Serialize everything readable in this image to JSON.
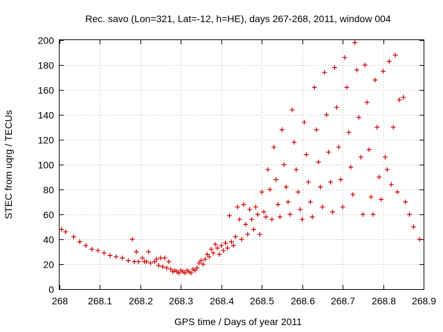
{
  "chart_data": {
    "type": "scatter",
    "title": "Rec. savo (Lon=321, Lat=-12, h=HE), days 267-268, 2011, window 004",
    "xlabel": "GPS time / Days of year 2011",
    "ylabel": "STEC from uqrg / TECUs",
    "xlim": [
      268,
      268.9
    ],
    "ylim": [
      0,
      200
    ],
    "x_ticks": [
      268,
      268.1,
      268.2,
      268.3,
      268.4,
      268.5,
      268.6,
      268.7,
      268.8,
      268.9
    ],
    "x_tick_labels": [
      "268",
      "268.1",
      "268.2",
      "268.3",
      "268.4",
      "268.5",
      "268.6",
      "268.7",
      "268.8",
      "268.9"
    ],
    "y_ticks": [
      0,
      20,
      40,
      60,
      80,
      100,
      120,
      140,
      160,
      180,
      200
    ],
    "y_tick_labels": [
      "0",
      "20",
      "40",
      "60",
      "80",
      "100",
      "120",
      "140",
      "160",
      "180",
      "200"
    ],
    "grid": true,
    "marker": "+",
    "color": "#cc0000",
    "series": [
      {
        "name": "STEC",
        "points": [
          [
            268.005,
            48
          ],
          [
            268.015,
            46
          ],
          [
            268.035,
            42
          ],
          [
            268.05,
            38
          ],
          [
            268.065,
            35
          ],
          [
            268.08,
            32
          ],
          [
            268.095,
            31
          ],
          [
            268.11,
            29
          ],
          [
            268.125,
            27
          ],
          [
            268.14,
            26
          ],
          [
            268.155,
            25
          ],
          [
            268.17,
            23
          ],
          [
            268.18,
            40
          ],
          [
            268.185,
            22
          ],
          [
            268.19,
            30
          ],
          [
            268.195,
            22
          ],
          [
            268.205,
            25
          ],
          [
            268.21,
            22
          ],
          [
            268.215,
            22
          ],
          [
            268.22,
            30
          ],
          [
            268.225,
            21
          ],
          [
            268.235,
            22
          ],
          [
            268.24,
            24
          ],
          [
            268.245,
            19
          ],
          [
            268.25,
            25
          ],
          [
            268.255,
            18
          ],
          [
            268.26,
            25
          ],
          [
            268.265,
            17
          ],
          [
            268.27,
            22
          ],
          [
            268.275,
            16
          ],
          [
            268.28,
            14
          ],
          [
            268.285,
            15
          ],
          [
            268.29,
            14
          ],
          [
            268.295,
            13
          ],
          [
            268.3,
            15
          ],
          [
            268.305,
            14
          ],
          [
            268.31,
            13
          ],
          [
            268.315,
            15
          ],
          [
            268.32,
            14
          ],
          [
            268.325,
            13
          ],
          [
            268.33,
            16
          ],
          [
            268.335,
            15
          ],
          [
            268.34,
            17
          ],
          [
            268.345,
            21
          ],
          [
            268.35,
            23
          ],
          [
            268.355,
            20
          ],
          [
            268.36,
            24
          ],
          [
            268.365,
            28
          ],
          [
            268.37,
            26
          ],
          [
            268.375,
            32
          ],
          [
            268.38,
            29
          ],
          [
            268.385,
            36
          ],
          [
            268.39,
            33
          ],
          [
            268.395,
            28
          ],
          [
            268.4,
            35
          ],
          [
            268.405,
            31
          ],
          [
            268.41,
            37
          ],
          [
            268.415,
            33
          ],
          [
            268.42,
            59
          ],
          [
            268.425,
            38
          ],
          [
            268.43,
            35
          ],
          [
            268.435,
            42
          ],
          [
            268.44,
            66
          ],
          [
            268.445,
            56
          ],
          [
            268.45,
            40
          ],
          [
            268.455,
            68
          ],
          [
            268.46,
            52
          ],
          [
            268.465,
            44
          ],
          [
            268.47,
            64
          ],
          [
            268.475,
            56
          ],
          [
            268.48,
            48
          ],
          [
            268.485,
            66
          ],
          [
            268.49,
            60
          ],
          [
            268.495,
            44
          ],
          [
            268.5,
            78
          ],
          [
            268.505,
            62
          ],
          [
            268.51,
            58
          ],
          [
            268.515,
            96
          ],
          [
            268.52,
            80
          ],
          [
            268.525,
            56
          ],
          [
            268.53,
            114
          ],
          [
            268.535,
            88
          ],
          [
            268.54,
            68
          ],
          [
            268.545,
            58
          ],
          [
            268.55,
            128
          ],
          [
            268.555,
            100
          ],
          [
            268.56,
            82
          ],
          [
            268.565,
            70
          ],
          [
            268.57,
            60
          ],
          [
            268.575,
            144
          ],
          [
            268.58,
            118
          ],
          [
            268.585,
            96
          ],
          [
            268.59,
            78
          ],
          [
            268.595,
            64
          ],
          [
            268.6,
            56
          ],
          [
            268.605,
            134
          ],
          [
            268.61,
            108
          ],
          [
            268.615,
            86
          ],
          [
            268.62,
            70
          ],
          [
            268.625,
            58
          ],
          [
            268.63,
            162
          ],
          [
            268.635,
            128
          ],
          [
            268.64,
            102
          ],
          [
            268.645,
            82
          ],
          [
            268.65,
            66
          ],
          [
            268.655,
            174
          ],
          [
            268.66,
            140
          ],
          [
            268.665,
            110
          ],
          [
            268.67,
            86
          ],
          [
            268.675,
            62
          ],
          [
            268.68,
            178
          ],
          [
            268.685,
            146
          ],
          [
            268.69,
            114
          ],
          [
            268.695,
            88
          ],
          [
            268.7,
            66
          ],
          [
            268.705,
            186
          ],
          [
            268.71,
            162
          ],
          [
            268.715,
            126
          ],
          [
            268.72,
            98
          ],
          [
            268.725,
            76
          ],
          [
            268.73,
            198
          ],
          [
            268.735,
            176
          ],
          [
            268.74,
            138
          ],
          [
            268.745,
            106
          ],
          [
            268.75,
            60
          ],
          [
            268.755,
            180
          ],
          [
            268.76,
            150
          ],
          [
            268.765,
            112
          ],
          [
            268.77,
            74
          ],
          [
            268.775,
            60
          ],
          [
            268.78,
            168
          ],
          [
            268.785,
            130
          ],
          [
            268.79,
            90
          ],
          [
            268.795,
            72
          ],
          [
            268.8,
            175
          ],
          [
            268.805,
            106
          ],
          [
            268.81,
            96
          ],
          [
            268.815,
            183
          ],
          [
            268.82,
            84
          ],
          [
            268.825,
            130
          ],
          [
            268.83,
            188
          ],
          [
            268.835,
            78
          ],
          [
            268.84,
            152
          ],
          [
            268.85,
            154
          ],
          [
            268.855,
            70
          ],
          [
            268.865,
            60
          ],
          [
            268.875,
            50
          ],
          [
            268.89,
            40
          ]
        ]
      }
    ]
  }
}
